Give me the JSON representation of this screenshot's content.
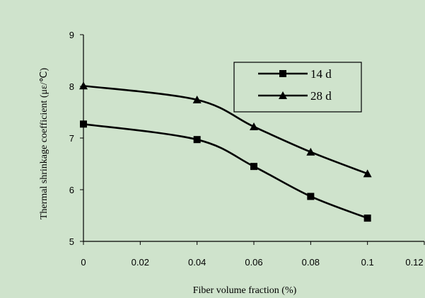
{
  "chart_data": {
    "type": "line",
    "title": "",
    "xlabel": "Fiber volume fraction (%)",
    "ylabel": "Thermal shrinkage coefficient (με/℃)",
    "xlim": [
      0,
      0.12
    ],
    "ylim": [
      5,
      9
    ],
    "x_ticks": [
      "0",
      "0.02",
      "0.04",
      "0.06",
      "0.08",
      "0.1",
      "0.12"
    ],
    "y_ticks": [
      "5",
      "6",
      "7",
      "8",
      "9"
    ],
    "x": [
      0,
      0.04,
      0.06,
      0.08,
      0.1
    ],
    "series": [
      {
        "name": "14 d",
        "marker": "square",
        "values": [
          7.27,
          6.97,
          6.45,
          5.87,
          5.45
        ]
      },
      {
        "name": "28 d",
        "marker": "triangle",
        "values": [
          8.01,
          7.74,
          7.22,
          6.73,
          6.31
        ]
      }
    ],
    "legend_position": "top-right",
    "grid": false,
    "background_color": "#cfe3cc",
    "line_color": "#000000"
  }
}
